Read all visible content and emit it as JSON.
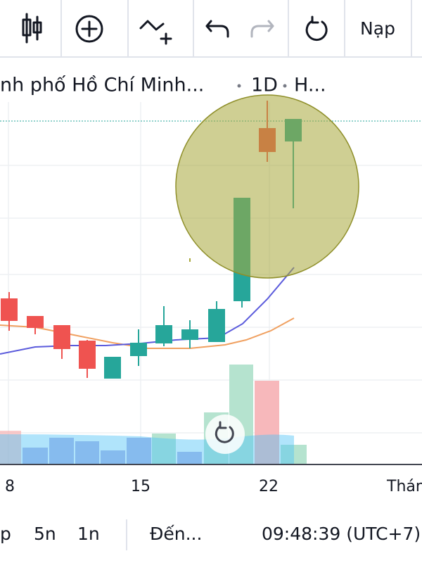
{
  "toolbar": {
    "load_button": "Nạp"
  },
  "header": {
    "symbol": "nh phố Hồ Chí Minh...",
    "interval": "1D",
    "extra": "H..."
  },
  "x_axis": {
    "labels": [
      "8",
      "15",
      "22",
      "Thán"
    ]
  },
  "bottom_bar": {
    "ranges": [
      "p",
      "5n",
      "1n"
    ],
    "goto": "Đến...",
    "clock": "09:48:39 (UTC+7)"
  }
}
